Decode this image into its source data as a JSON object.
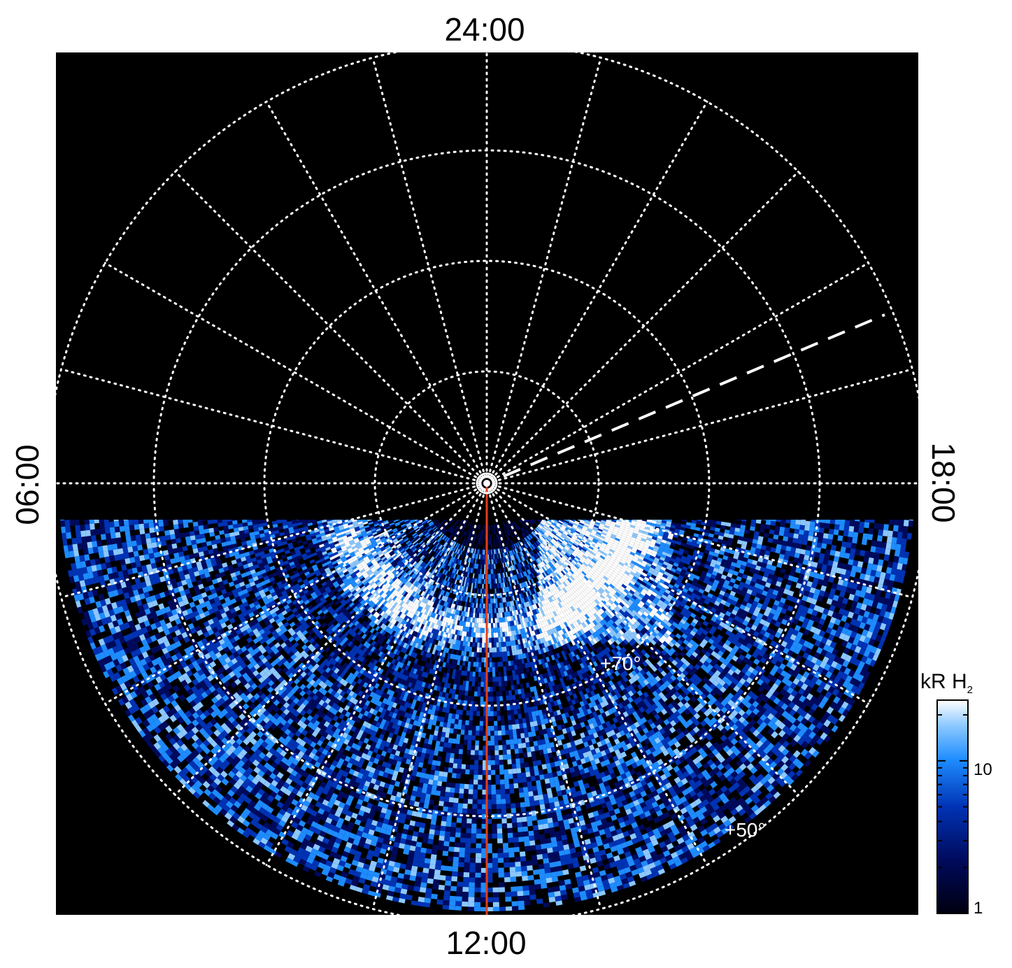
{
  "local_time_labels": {
    "top": "24:00",
    "bottom": "12:00",
    "left": "06:00",
    "right": "18:00"
  },
  "latitude_labels": {
    "inner": "+70°",
    "outer": "+50°"
  },
  "colorbar": {
    "title_main": "kR H",
    "title_sub": "2",
    "tick_mid": "10",
    "tick_low": "1",
    "scale": "log",
    "range": [
      1,
      25
    ],
    "colors": [
      "#000010",
      "#000a5c",
      "#0033b4",
      "#1e8cff",
      "#8cc8ff",
      "#ffffff"
    ]
  },
  "map": {
    "background": "#000000",
    "grid_color": "#ffffff",
    "meridian_color": "#e0401a",
    "meridian_direction": "12:00",
    "dashed_line_local_time": "19:30",
    "gridlines": true
  }
}
